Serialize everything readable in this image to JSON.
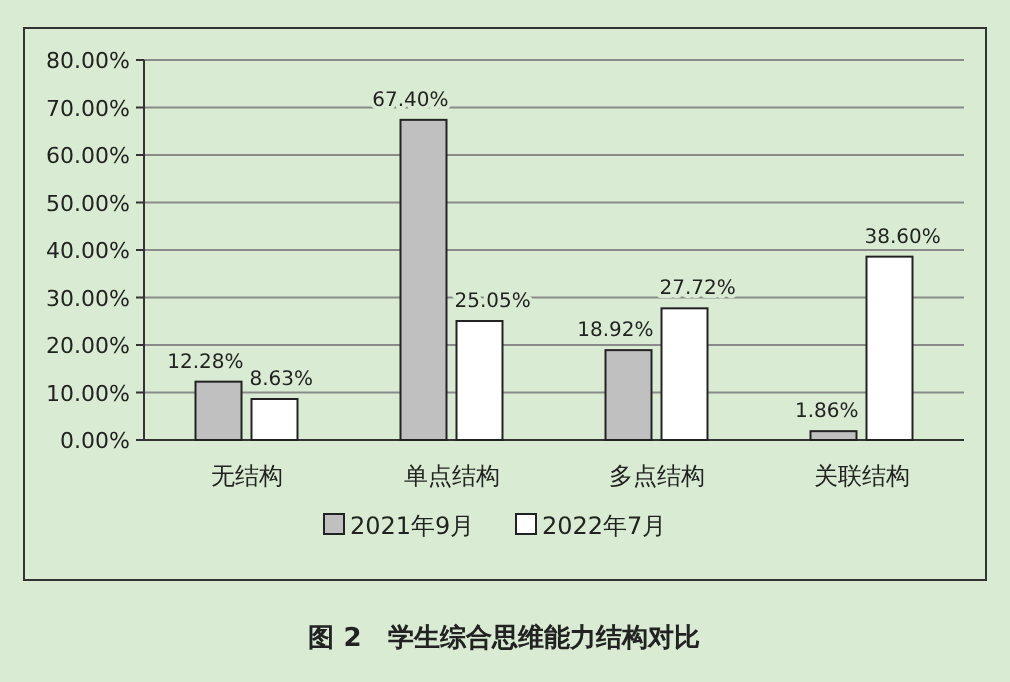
{
  "chart_data": {
    "type": "bar",
    "title": "图 2　学生综合思维能力结构对比",
    "categories": [
      "无结构",
      "单点结构",
      "多点结构",
      "关联结构"
    ],
    "series": [
      {
        "name": "2021年9月",
        "color": "#c0c0c0",
        "values": [
          12.28,
          67.4,
          18.92,
          1.86
        ],
        "value_labels": [
          "12.28%",
          "67.40%",
          "18.92%",
          "1.86%"
        ]
      },
      {
        "name": "2022年7月",
        "color": "#ffffff",
        "values": [
          8.63,
          25.05,
          27.72,
          38.6
        ],
        "value_labels": [
          "8.63%",
          "25.05%",
          "27.72%",
          "38.60%"
        ]
      }
    ],
    "ylim": [
      0,
      80
    ],
    "yticks": [
      {
        "value": 0,
        "label": "0.00%"
      },
      {
        "value": 10,
        "label": "10.00%"
      },
      {
        "value": 20,
        "label": "20.00%"
      },
      {
        "value": 30,
        "label": "30.00%"
      },
      {
        "value": 40,
        "label": "40.00%"
      },
      {
        "value": 50,
        "label": "50.00%"
      },
      {
        "value": 60,
        "label": "60.00%"
      },
      {
        "value": 70,
        "label": "70.00%"
      },
      {
        "value": 80,
        "label": "80.00%"
      }
    ],
    "grid": "y",
    "legend": "bottom"
  }
}
